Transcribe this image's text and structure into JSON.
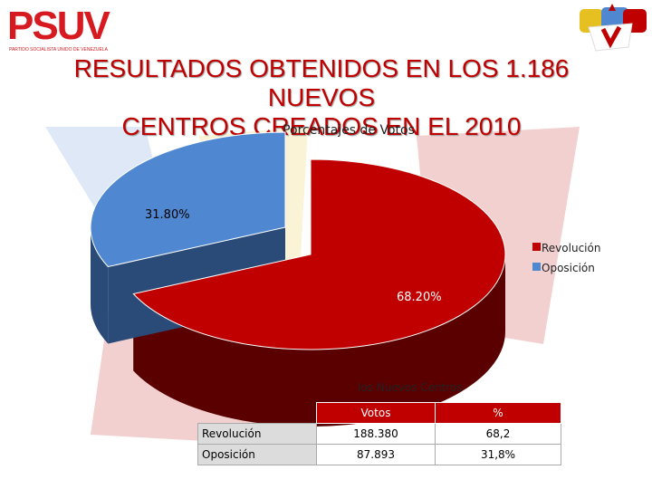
{
  "header": {
    "logo_text": "PSUV",
    "logo_subtitle": "PARTIDO SOCIALISTA UNIDO DE VENEZUELA",
    "title_line1": "RESULTADOS OBTENIDOS EN LOS 1.186 NUEVOS",
    "title_line2": "CENTROS CREADOS EN EL 2010"
  },
  "colors": {
    "revolucion": "#c00000",
    "oposicion": "#4f87d0",
    "title": "#c00000"
  },
  "chart_data": {
    "type": "pie",
    "title": "Porcentajes de Votos",
    "categories": [
      "Revolución",
      "Oposición"
    ],
    "values": [
      68.2,
      31.8
    ],
    "labels": [
      "68.20%",
      "31.80%"
    ],
    "legend": "right",
    "exploded": "Oposición",
    "style": "3d"
  },
  "table": {
    "caption": "los Nuevos Centros",
    "headers": [
      "Votos",
      "%"
    ],
    "rows": [
      {
        "label": "Revolución",
        "votos": "188.380",
        "pct": "68,2"
      },
      {
        "label": "Oposición",
        "votos": "87.893",
        "pct": "31,8%"
      }
    ]
  }
}
